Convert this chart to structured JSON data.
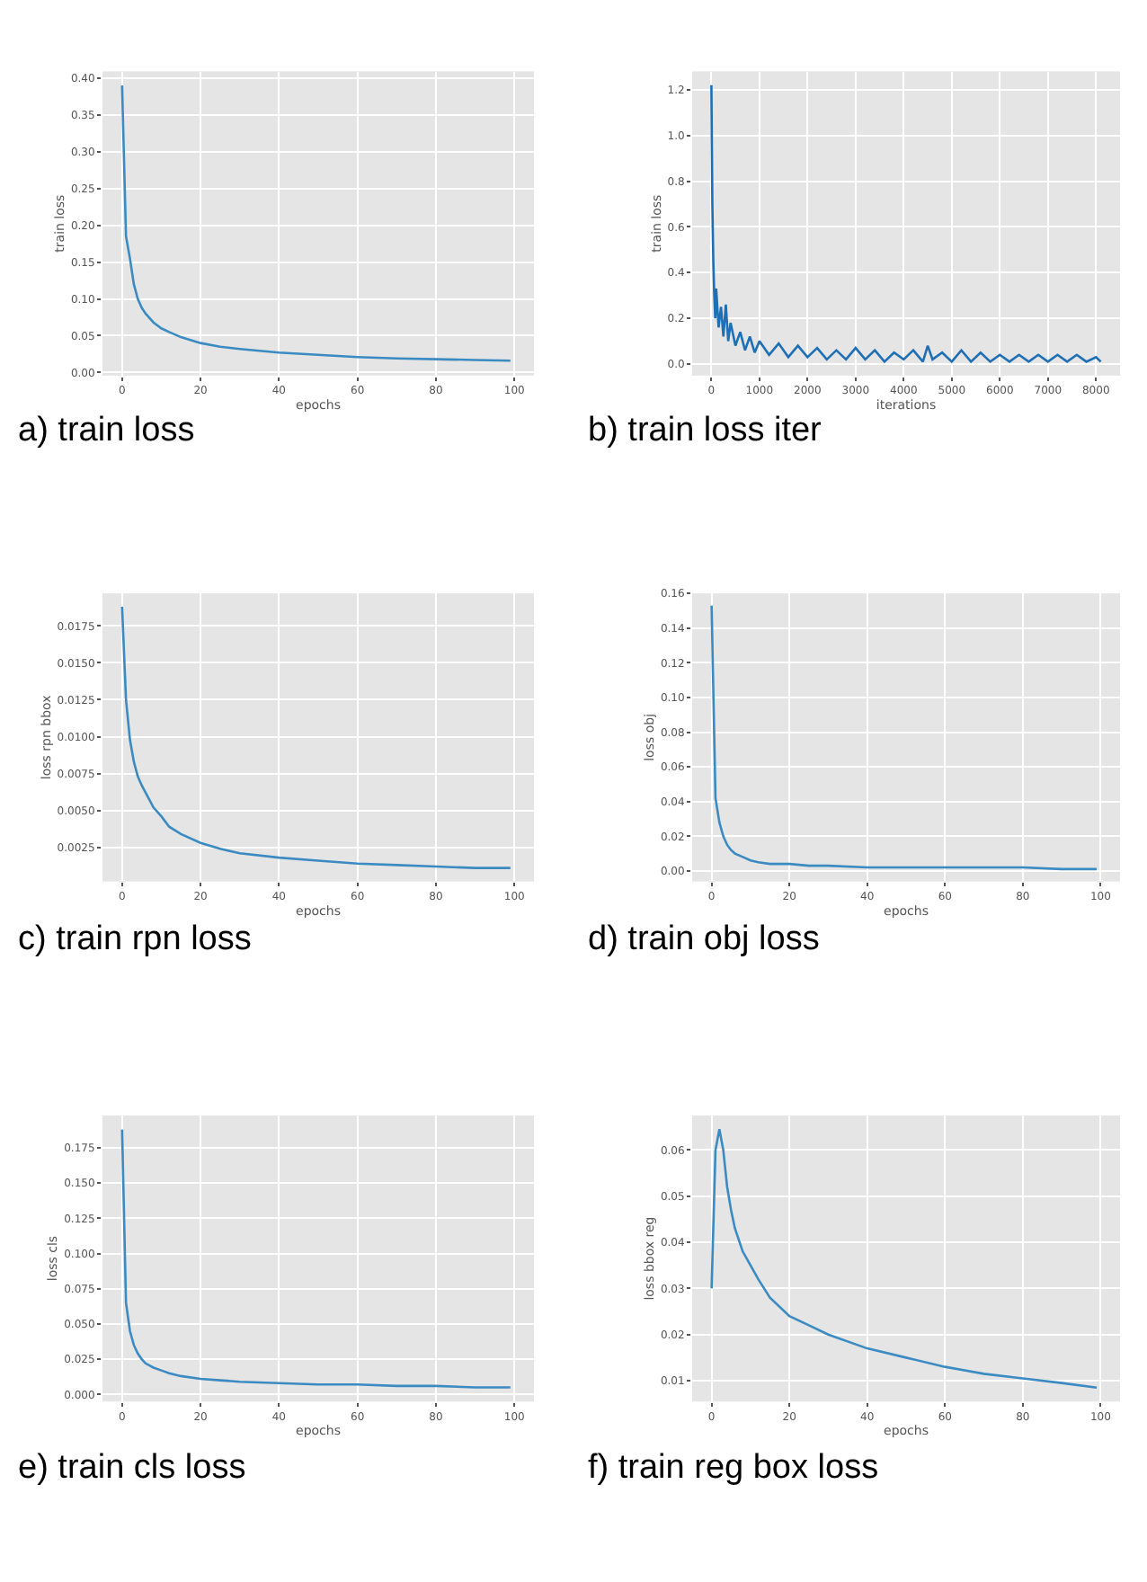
{
  "chart_data": [
    {
      "type": "line",
      "title": "a) train loss",
      "xlabel": "epochs",
      "ylabel": "train loss",
      "grid": true,
      "x": [
        0,
        1,
        2,
        3,
        4,
        5,
        6,
        8,
        10,
        12,
        15,
        20,
        25,
        30,
        40,
        50,
        60,
        70,
        80,
        90,
        99
      ],
      "series": [
        {
          "color": "#3b8bc2",
          "values": [
            0.39,
            0.185,
            0.155,
            0.12,
            0.1,
            0.088,
            0.08,
            0.068,
            0.06,
            0.055,
            0.048,
            0.04,
            0.035,
            0.032,
            0.027,
            0.024,
            0.021,
            0.019,
            0.018,
            0.017,
            0.016
          ]
        }
      ],
      "xlim": [
        -5,
        105
      ],
      "xticks": [
        0,
        20,
        40,
        60,
        80,
        100
      ],
      "ylim": [
        -0.004,
        0.409
      ],
      "yticks": [
        {
          "value": 0,
          "label": "0.00"
        },
        0.05,
        {
          "value": 0.1,
          "label": "0.10"
        },
        0.15,
        {
          "value": 0.2,
          "label": "0.20"
        },
        0.25,
        {
          "value": 0.3,
          "label": "0.30"
        },
        0.35,
        {
          "value": 0.4,
          "label": "0.40"
        }
      ]
    },
    {
      "type": "line",
      "title": "b) train loss iter",
      "xlabel": "iterations",
      "ylabel": "train loss",
      "grid": true,
      "x": [
        0,
        20,
        40,
        60,
        80,
        100,
        150,
        200,
        250,
        300,
        350,
        400,
        500,
        600,
        700,
        800,
        900,
        1000,
        1200,
        1400,
        1600,
        1800,
        2000,
        2200,
        2400,
        2600,
        2800,
        3000,
        3200,
        3400,
        3600,
        3800,
        4000,
        4200,
        4400,
        4500,
        4600,
        4800,
        5000,
        5200,
        5400,
        5600,
        5800,
        6000,
        6200,
        6400,
        6600,
        6800,
        7000,
        7200,
        7400,
        7600,
        7800,
        8000,
        8100
      ],
      "series": [
        {
          "color": "#1f6fb4",
          "values": [
            1.22,
            0.7,
            0.45,
            0.3,
            0.2,
            0.33,
            0.16,
            0.25,
            0.12,
            0.26,
            0.1,
            0.18,
            0.08,
            0.14,
            0.06,
            0.12,
            0.05,
            0.1,
            0.04,
            0.09,
            0.03,
            0.08,
            0.03,
            0.07,
            0.02,
            0.06,
            0.02,
            0.07,
            0.02,
            0.06,
            0.01,
            0.05,
            0.02,
            0.06,
            0.01,
            0.08,
            0.02,
            0.05,
            0.01,
            0.06,
            0.01,
            0.05,
            0.01,
            0.04,
            0.01,
            0.04,
            0.01,
            0.04,
            0.01,
            0.04,
            0.01,
            0.04,
            0.01,
            0.03,
            0.01
          ]
        }
      ],
      "xlim": [
        -400,
        8500
      ],
      "xticks": [
        0,
        1000,
        2000,
        3000,
        4000,
        5000,
        6000,
        7000,
        8000
      ],
      "ylim": [
        -0.05,
        1.28
      ],
      "yticks": [
        {
          "value": 0,
          "label": "0.0"
        },
        0.2,
        0.4,
        0.6,
        0.8,
        {
          "value": 1,
          "label": "1.0"
        },
        1.2
      ]
    },
    {
      "type": "line",
      "title": "c) train rpn loss",
      "xlabel": "epochs",
      "ylabel": "loss rpn bbox",
      "grid": true,
      "x": [
        0,
        1,
        2,
        3,
        4,
        5,
        6,
        8,
        10,
        12,
        15,
        20,
        25,
        30,
        40,
        50,
        60,
        70,
        80,
        90,
        99
      ],
      "series": [
        {
          "color": "#3b8bc2",
          "values": [
            0.0188,
            0.0125,
            0.0098,
            0.0083,
            0.0073,
            0.0067,
            0.0062,
            0.0052,
            0.0046,
            0.0039,
            0.0034,
            0.0028,
            0.0024,
            0.0021,
            0.0018,
            0.0016,
            0.0014,
            0.0013,
            0.0012,
            0.0011,
            0.0011
          ]
        }
      ],
      "xlim": [
        -5,
        105
      ],
      "xticks": [
        0,
        20,
        40,
        60,
        80,
        100
      ],
      "ylim": [
        0.0002,
        0.0197
      ],
      "yticks": [
        0.0025,
        {
          "value": 0.005,
          "label": "0.0050"
        },
        0.0075,
        {
          "value": 0.01,
          "label": "0.0100"
        },
        0.0125,
        {
          "value": 0.015,
          "label": "0.0150"
        },
        0.0175
      ]
    },
    {
      "type": "line",
      "title": "d) train obj loss",
      "xlabel": "epochs",
      "ylabel": "loss obj",
      "grid": true,
      "x": [
        0,
        1,
        2,
        3,
        4,
        5,
        6,
        8,
        10,
        12,
        15,
        20,
        25,
        30,
        40,
        50,
        60,
        70,
        80,
        90,
        99
      ],
      "series": [
        {
          "color": "#3b8bc2",
          "values": [
            0.153,
            0.042,
            0.028,
            0.02,
            0.015,
            0.012,
            0.01,
            0.008,
            0.006,
            0.005,
            0.004,
            0.004,
            0.003,
            0.003,
            0.002,
            0.002,
            0.002,
            0.002,
            0.002,
            0.001,
            0.001
          ]
        }
      ],
      "xlim": [
        -5,
        105
      ],
      "xticks": [
        0,
        20,
        40,
        60,
        80,
        100
      ],
      "ylim": [
        -0.006,
        0.16
      ],
      "yticks": [
        {
          "value": 0,
          "label": "0.00"
        },
        0.02,
        0.04,
        0.06,
        0.08,
        {
          "value": 0.1,
          "label": "0.10"
        },
        0.12,
        0.14,
        0.16
      ]
    },
    {
      "type": "line",
      "title": "e) train cls loss",
      "xlabel": "epochs",
      "ylabel": "loss cls",
      "grid": true,
      "x": [
        0,
        1,
        2,
        3,
        4,
        5,
        6,
        8,
        10,
        12,
        15,
        20,
        25,
        30,
        40,
        50,
        60,
        70,
        80,
        90,
        99
      ],
      "series": [
        {
          "color": "#3b8bc2",
          "values": [
            0.188,
            0.065,
            0.045,
            0.035,
            0.029,
            0.025,
            0.022,
            0.019,
            0.017,
            0.015,
            0.013,
            0.011,
            0.01,
            0.009,
            0.008,
            0.007,
            0.007,
            0.006,
            0.006,
            0.005,
            0.005
          ]
        }
      ],
      "xlim": [
        -5,
        105
      ],
      "xticks": [
        0,
        20,
        40,
        60,
        80,
        100
      ],
      "ylim": [
        -0.005,
        0.198
      ],
      "yticks": [
        {
          "value": 0,
          "label": "0.000"
        },
        0.025,
        {
          "value": 0.05,
          "label": "0.050"
        },
        0.075,
        {
          "value": 0.1,
          "label": "0.100"
        },
        0.125,
        {
          "value": 0.15,
          "label": "0.150"
        },
        0.175
      ]
    },
    {
      "type": "line",
      "title": "f) train reg box loss",
      "xlabel": "epochs",
      "ylabel": "loss bbox reg",
      "grid": true,
      "x": [
        0,
        1,
        2,
        3,
        4,
        5,
        6,
        8,
        10,
        12,
        15,
        20,
        25,
        30,
        40,
        50,
        60,
        70,
        80,
        90,
        99
      ],
      "series": [
        {
          "color": "#3b8bc2",
          "values": [
            0.03,
            0.06,
            0.0645,
            0.06,
            0.052,
            0.047,
            0.043,
            0.038,
            0.035,
            0.032,
            0.028,
            0.024,
            0.022,
            0.02,
            0.017,
            0.015,
            0.013,
            0.0115,
            0.0105,
            0.0095,
            0.0085
          ]
        }
      ],
      "xlim": [
        -5,
        105
      ],
      "xticks": [
        0,
        20,
        40,
        60,
        80,
        100
      ],
      "ylim": [
        0.0055,
        0.0675
      ],
      "yticks": [
        0.01,
        0.02,
        0.03,
        0.04,
        0.05,
        0.06
      ]
    }
  ]
}
